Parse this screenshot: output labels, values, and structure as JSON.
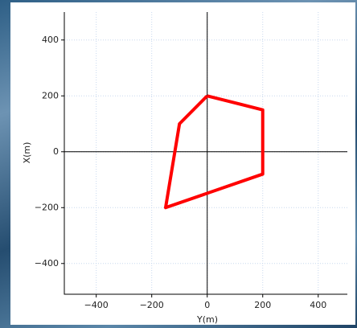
{
  "chart_data": {
    "type": "line",
    "xlabel": "Y(m)",
    "ylabel": "X(m)",
    "x": [
      0,
      200,
      200,
      -150,
      -100,
      0
    ],
    "series": [
      {
        "color": "#ff0000",
        "values": [
          200,
          150,
          -80,
          -200,
          100,
          200
        ]
      }
    ],
    "xlim": [
      -515,
      505
    ],
    "ylim": [
      -510,
      500
    ],
    "xticks": [
      {
        "value": -400,
        "label": "−400"
      },
      {
        "value": -200,
        "label": "−200"
      },
      0,
      200,
      400
    ],
    "yticks": [
      {
        "value": -400,
        "label": "−400"
      },
      {
        "value": -200,
        "label": "−200"
      },
      0,
      200,
      400
    ],
    "grid": true,
    "zero_lines": true
  }
}
